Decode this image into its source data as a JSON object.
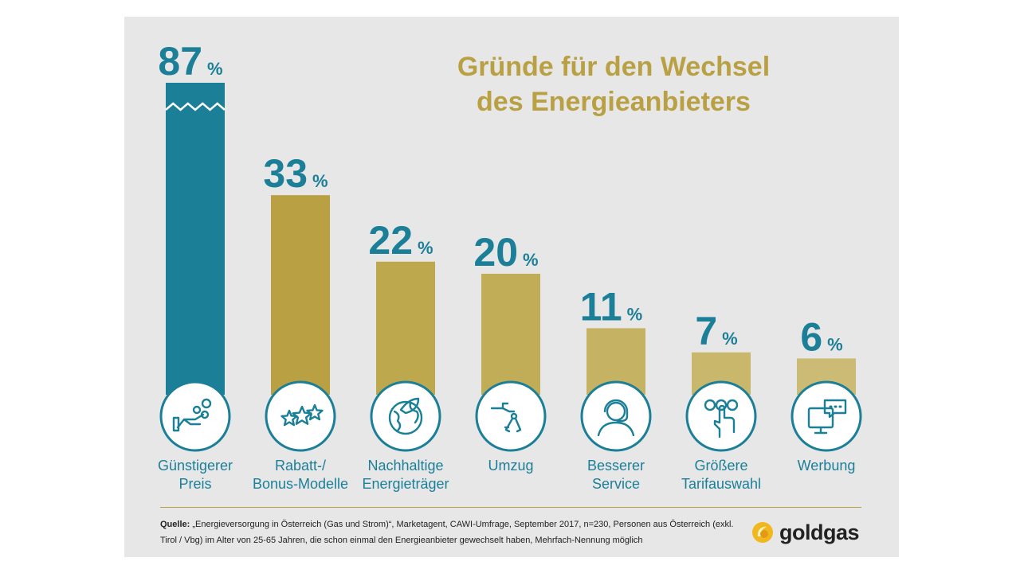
{
  "chart_data": {
    "type": "bar",
    "title": [
      "Gründe für den Wechsel",
      "des Energieanbieters"
    ],
    "categories": [
      [
        "Günstigerer",
        "Preis"
      ],
      [
        "Rabatt-/",
        "Bonus-Modelle"
      ],
      [
        "Nachhaltige",
        "Energieträger"
      ],
      [
        "Umzug"
      ],
      [
        "Besserer",
        "Service"
      ],
      [
        "Größere",
        "Tarifauswahl"
      ],
      [
        "Werbung"
      ]
    ],
    "values": [
      87,
      33,
      22,
      20,
      11,
      7,
      6
    ],
    "value_labels": [
      "87",
      "33",
      "22",
      "20",
      "11",
      "7",
      "6"
    ],
    "unit": "%",
    "icons": [
      "hand-coins-icon",
      "stars-icon",
      "globe-leaf-icon",
      "hand-keys-icon",
      "headset-agent-icon",
      "finger-press-buttons-icon",
      "monitor-chat-icon"
    ],
    "highlight_index": 0,
    "axis_break": true
  },
  "colors": {
    "highlight": "#1b7f97",
    "bars": [
      "#1b7f97",
      "#b9a043",
      "#bda84d",
      "#c1ad57",
      "#c5b262",
      "#c9b76c",
      "#ccbb75"
    ],
    "label": "#1b7f97",
    "title": "#b9a043",
    "panel": "#e7e7e8"
  },
  "source": {
    "label": "Quelle:",
    "text": " „Energieversorgung in Österreich (Gas und Strom)“, Marketagent, CAWI-Umfrage, September 2017, n=230, Personen aus Österreich (exkl. Tirol / Vbg) im Alter von 25-65 Jahren, die schon einmal den Energieanbieter gewechselt haben, Mehrfach-Nennung möglich"
  },
  "logo": {
    "text": "goldgas"
  }
}
